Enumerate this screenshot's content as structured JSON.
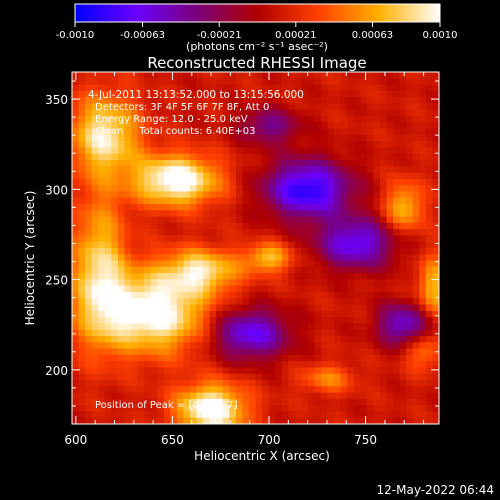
{
  "chart_data": {
    "type": "heatmap",
    "title": "Reconstructed RHESSI Image",
    "xlabel": "Heliocentric X (arcsec)",
    "ylabel": "Heliocentric Y (arcsec)",
    "xlim": [
      598,
      788
    ],
    "ylim": [
      170,
      365
    ],
    "x_ticks": [
      600,
      650,
      700,
      750
    ],
    "y_ticks": [
      200,
      250,
      300,
      350
    ],
    "colorbar": {
      "range": [
        -0.001,
        0.001
      ],
      "tick_labels": [
        "-0.0010",
        "-0.00063",
        "-0.00021",
        "0.00021",
        "0.00063",
        "0.0010"
      ],
      "unit_label": "(photons cm⁻² s⁻¹ asec⁻²)",
      "colors": [
        "#0000ff",
        "#6a00ff",
        "#7a007a",
        "#b00000",
        "#ff4000",
        "#ffb000",
        "#ffffff"
      ]
    },
    "annotations": {
      "time_range": "4-Jul-2011 13:13:52.000 to 13:15:56.000",
      "detectors": "Detectors: 3F 4F 5F 6F 7F 8F, Att 0",
      "energy": "Energy Range: 12.0 - 25.0 keV",
      "clean": "Clean     Total counts: 6.40E+03",
      "peak": "Position of Peak = [646,237]"
    },
    "blobs": [
      {
        "x": 652,
        "y": 305,
        "v": 0.001,
        "rx": 22,
        "ry": 14
      },
      {
        "x": 615,
        "y": 330,
        "v": 0.0008,
        "rx": 18,
        "ry": 22
      },
      {
        "x": 640,
        "y": 232,
        "v": 0.001,
        "rx": 28,
        "ry": 22
      },
      {
        "x": 665,
        "y": 255,
        "v": 0.0007,
        "rx": 20,
        "ry": 12
      },
      {
        "x": 612,
        "y": 255,
        "v": 0.0007,
        "rx": 14,
        "ry": 40
      },
      {
        "x": 670,
        "y": 178,
        "v": 0.001,
        "rx": 18,
        "ry": 14
      },
      {
        "x": 700,
        "y": 262,
        "v": 0.0006,
        "rx": 12,
        "ry": 8
      },
      {
        "x": 770,
        "y": 290,
        "v": 0.0006,
        "rx": 10,
        "ry": 14
      },
      {
        "x": 785,
        "y": 245,
        "v": 0.0006,
        "rx": 8,
        "ry": 18
      },
      {
        "x": 730,
        "y": 195,
        "v": 0.0004,
        "rx": 14,
        "ry": 8
      },
      {
        "x": 780,
        "y": 210,
        "v": 0.0004,
        "rx": 10,
        "ry": 10
      },
      {
        "x": 720,
        "y": 300,
        "v": -0.001,
        "rx": 22,
        "ry": 16
      },
      {
        "x": 745,
        "y": 270,
        "v": -0.0008,
        "rx": 20,
        "ry": 14
      },
      {
        "x": 690,
        "y": 220,
        "v": -0.0008,
        "rx": 20,
        "ry": 14
      },
      {
        "x": 770,
        "y": 225,
        "v": -0.0007,
        "rx": 14,
        "ry": 12
      },
      {
        "x": 700,
        "y": 335,
        "v": -0.0005,
        "rx": 16,
        "ry": 10
      }
    ]
  },
  "footer": {
    "datestamp": "12-May-2022 06:44"
  }
}
